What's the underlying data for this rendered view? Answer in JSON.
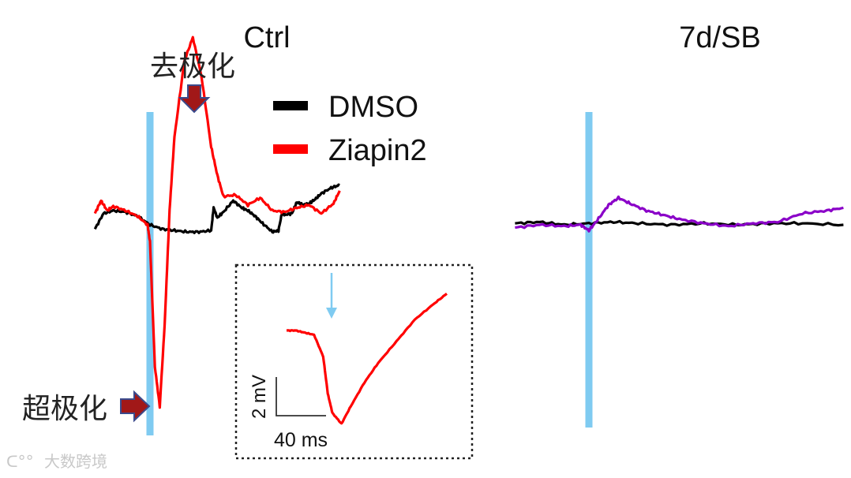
{
  "chart_data": {
    "type": "line",
    "panels": [
      {
        "title": "Ctrl",
        "x_unit": "ms",
        "y_unit": "mV",
        "stimulus_at": 0,
        "series": [
          {
            "name": "DMSO",
            "color": "#000000",
            "x": [
              -45,
              -38,
              -30,
              -20,
              -10,
              0,
              10,
              20,
              30,
              40,
              50,
              52,
              55,
              60,
              68,
              75,
              80,
              86,
              92,
              100,
              105,
              108,
              110,
              116,
              120,
              125,
              130,
              135,
              140,
              148,
              155
            ],
            "y": [
              -0.3,
              0.8,
              1.0,
              0.9,
              0.6,
              0.0,
              -0.3,
              -0.4,
              -0.5,
              -0.5,
              -0.4,
              1.2,
              0.5,
              0.9,
              1.7,
              1.2,
              1.0,
              0.6,
              0.1,
              -0.5,
              -0.4,
              0.9,
              0.7,
              0.8,
              1.6,
              1.4,
              1.5,
              1.8,
              2.2,
              2.6,
              2.8
            ]
          },
          {
            "name": "Ziapin2",
            "color": "#ff0000",
            "x": [
              -45,
              -40,
              -35,
              -30,
              -20,
              -10,
              -2,
              0,
              4,
              8,
              12,
              16,
              20,
              28,
              35,
              42,
              50,
              55,
              60,
              70,
              80,
              90,
              100,
              110,
              120,
              130,
              140,
              150,
              155
            ],
            "y": [
              0.8,
              1.7,
              1.0,
              1.3,
              1.0,
              0.6,
              0.0,
              -1.2,
              -10.0,
              -12.8,
              -7.0,
              1.0,
              6.2,
              11.5,
              13.2,
              10.5,
              5.5,
              3.5,
              2.0,
              2.1,
              1.4,
              1.9,
              1.0,
              0.9,
              1.2,
              1.4,
              0.8,
              1.5,
              2.4
            ]
          }
        ]
      },
      {
        "title": "7d/SB",
        "x_unit": "ms",
        "y_unit": "mV",
        "stimulus_at": 0,
        "series": [
          {
            "name": "DMSO",
            "color": "#000000",
            "x": [
              -45,
              -30,
              -15,
              0,
              15,
              30,
              50,
              70,
              90,
              110,
              130,
              155
            ],
            "y": [
              0.1,
              0.2,
              0.0,
              0.1,
              0.2,
              0.1,
              0.0,
              0.1,
              0.0,
              0.1,
              0.1,
              0.0
            ]
          },
          {
            "name": "Ziapin2",
            "color": "#8a00c8",
            "x": [
              -45,
              -30,
              -15,
              -5,
              0,
              5,
              12,
              18,
              25,
              35,
              45,
              55,
              70,
              85,
              100,
              115,
              130,
              145,
              155
            ],
            "y": [
              -0.2,
              0.0,
              -0.1,
              0.0,
              -0.4,
              0.3,
              1.4,
              1.9,
              1.5,
              1.0,
              0.7,
              0.4,
              0.1,
              -0.1,
              0.1,
              0.2,
              0.8,
              1.0,
              1.2
            ]
          }
        ]
      }
    ],
    "inset": {
      "series": "Ziapin2",
      "color": "#ff0000",
      "x": [
        0,
        4,
        8,
        12,
        16,
        18,
        20,
        24,
        28,
        34,
        40,
        48,
        56,
        64,
        70
      ],
      "y": [
        0.0,
        0.0,
        -0.1,
        -0.2,
        -1.2,
        -2.9,
        -3.8,
        -4.3,
        -3.5,
        -2.4,
        -1.5,
        -0.5,
        0.5,
        1.2,
        1.7
      ],
      "stimulus_at": 18,
      "scale_bar_x_label": "40 ms",
      "scale_bar_y_label": "2 mV"
    },
    "legend": [
      {
        "name": "DMSO",
        "color": "#000000"
      },
      {
        "name": "Ziapin2",
        "color": "#ff0000"
      }
    ],
    "annotations": {
      "depolarization": "去极化",
      "hyperpolarization": "超极化"
    },
    "watermark": "大数跨境"
  }
}
